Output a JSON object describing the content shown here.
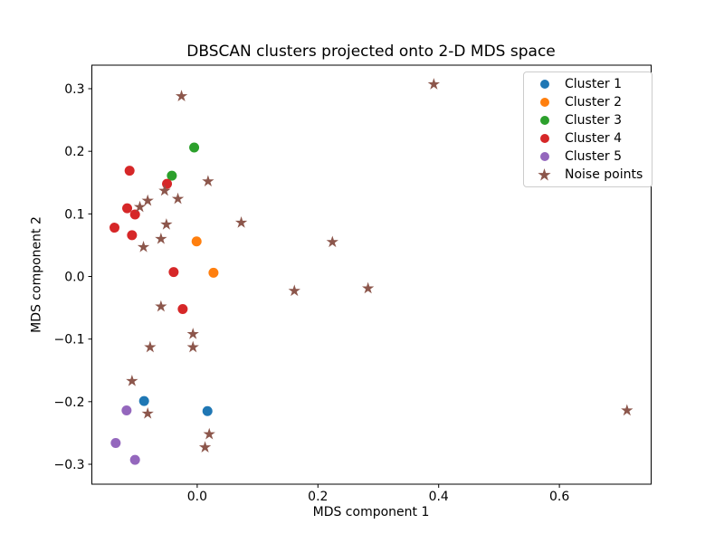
{
  "chart_data": {
    "type": "scatter",
    "title": "DBSCAN clusters projected onto 2-D MDS space",
    "xlabel": "MDS component 1",
    "ylabel": "MDS component 2",
    "xlim": [
      -0.1745,
      0.752
    ],
    "ylim": [
      -0.3318,
      0.3376
    ],
    "x_ticks": [
      0.0,
      0.2,
      0.4,
      0.6
    ],
    "x_tick_labels": [
      "0.0",
      "0.2",
      "0.4",
      "0.6"
    ],
    "y_ticks": [
      0.3,
      0.2,
      0.1,
      0.0,
      -0.1,
      -0.2,
      -0.3
    ],
    "y_tick_labels": [
      "0.3",
      "0.2",
      "0.1",
      "0.0",
      "−0.1",
      "−0.2",
      "−0.3"
    ],
    "grid": false,
    "legend_position": "upper right",
    "series": [
      {
        "name": "Cluster 1",
        "marker": "circle",
        "color": "#1f77b4",
        "points": [
          [
            -0.088,
            -0.199
          ],
          [
            0.017,
            -0.215
          ]
        ]
      },
      {
        "name": "Cluster 2",
        "marker": "circle",
        "color": "#ff7f0e",
        "points": [
          [
            -0.001,
            0.056
          ],
          [
            0.027,
            0.006
          ]
        ]
      },
      {
        "name": "Cluster 3",
        "marker": "circle",
        "color": "#2ca02c",
        "points": [
          [
            -0.005,
            0.206
          ],
          [
            -0.042,
            0.161
          ]
        ]
      },
      {
        "name": "Cluster 4",
        "marker": "circle",
        "color": "#d62728",
        "points": [
          [
            -0.112,
            0.169
          ],
          [
            -0.05,
            0.148
          ],
          [
            -0.116,
            0.109
          ],
          [
            -0.103,
            0.099
          ],
          [
            -0.137,
            0.078
          ],
          [
            -0.108,
            0.066
          ],
          [
            -0.039,
            0.007
          ],
          [
            -0.024,
            -0.052
          ]
        ]
      },
      {
        "name": "Cluster 5",
        "marker": "circle",
        "color": "#9467bd",
        "points": [
          [
            -0.117,
            -0.214
          ],
          [
            -0.135,
            -0.266
          ],
          [
            -0.103,
            -0.293
          ]
        ]
      },
      {
        "name": "Noise points",
        "marker": "star",
        "color": "#8c564b",
        "points": [
          [
            -0.026,
            0.288
          ],
          [
            0.392,
            0.307
          ],
          [
            0.018,
            0.152
          ],
          [
            -0.054,
            0.137
          ],
          [
            -0.032,
            0.124
          ],
          [
            -0.082,
            0.121
          ],
          [
            -0.095,
            0.111
          ],
          [
            -0.051,
            0.083
          ],
          [
            -0.06,
            0.06
          ],
          [
            -0.089,
            0.047
          ],
          [
            0.073,
            0.086
          ],
          [
            0.224,
            0.055
          ],
          [
            0.161,
            -0.023
          ],
          [
            0.283,
            -0.019
          ],
          [
            -0.06,
            -0.048
          ],
          [
            -0.007,
            -0.092
          ],
          [
            -0.078,
            -0.113
          ],
          [
            -0.007,
            -0.113
          ],
          [
            -0.108,
            -0.167
          ],
          [
            -0.082,
            -0.219
          ],
          [
            0.02,
            -0.252
          ],
          [
            0.013,
            -0.273
          ],
          [
            0.712,
            -0.214
          ]
        ]
      }
    ]
  }
}
